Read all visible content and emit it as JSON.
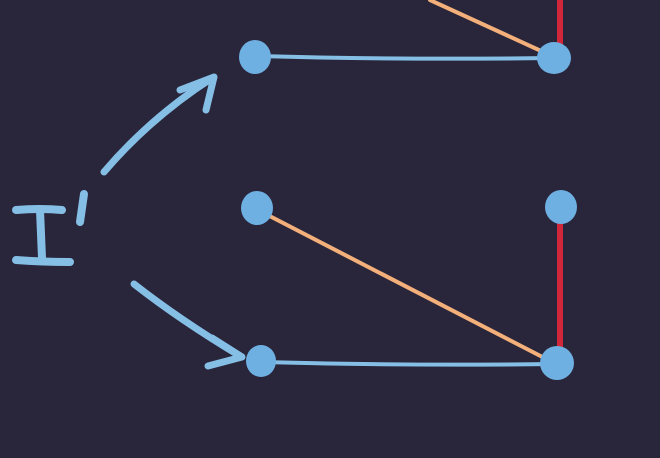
{
  "diagram": {
    "label": "I'",
    "colors": {
      "background": "#29253a",
      "node": "#6fb0e3",
      "edge_blue": "#86bfe6",
      "edge_orange": "#f3b07a",
      "edge_red": "#d0283a"
    }
  }
}
